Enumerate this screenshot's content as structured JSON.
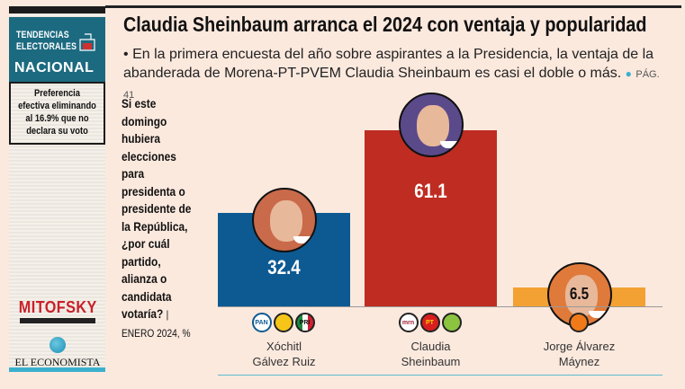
{
  "sidebar": {
    "brand_line1": "TENDENCIAS",
    "brand_line2": "ELECTORALES",
    "brand_line3": "NACIONAL",
    "note": "Preferencia efectiva eliminando al 16.9% que no declara su voto",
    "pollster": "MITOFSKY",
    "publisher": "EL ECONOMISTA",
    "brand_color": "#1c6a80"
  },
  "header": {
    "title": "Claudia Sheinbaum arranca el 2024 con ventaja y popularidad",
    "subtitle_bullet": "•",
    "subtitle": "En la primera encuesta del año sobre aspirantes a la Presidencia, la ventaja de la abanderada de Morena-PT-PVEM Claudia Sheinbaum es casi el doble o más.",
    "page_ref_bullet": "●",
    "page_ref": "PÁG. 41"
  },
  "question": {
    "text": "Si este domingo hubiera elecciones para presidenta o presidente de la República, ¿por cuál partido, alianza o candidata votaría?",
    "separator": "|",
    "meta": "ENERO 2024, %"
  },
  "chart_data": {
    "type": "bar",
    "title": "Claudia Sheinbaum arranca el 2024 con ventaja y popularidad",
    "xlabel": "",
    "ylabel": "%",
    "ylim": [
      0,
      65
    ],
    "grid": false,
    "categories": [
      "Xóchitl Gálvez Ruiz",
      "Claudia Sheinbaum",
      "Jorge Álvarez Máynez"
    ],
    "values": [
      32.4,
      61.1,
      6.5
    ],
    "value_labels": [
      "32.4",
      "61.1",
      "6.5"
    ],
    "colors": [
      "#0d5a92",
      "#bf2c22",
      "#f2a132"
    ],
    "label_colors": [
      "#ffffff",
      "#ffffff",
      "#111111"
    ],
    "candidates": [
      {
        "name_line1": "Xóchitl",
        "name_line2": "Gálvez Ruiz",
        "parties": [
          "PAN",
          "PRD",
          "PRI"
        ]
      },
      {
        "name_line1": "Claudia",
        "name_line2": "Sheinbaum",
        "parties": [
          "morena",
          "PT",
          "PVEM"
        ]
      },
      {
        "name_line1": "Jorge Álvarez",
        "name_line2": "Máynez",
        "parties": [
          "MC"
        ]
      }
    ]
  }
}
